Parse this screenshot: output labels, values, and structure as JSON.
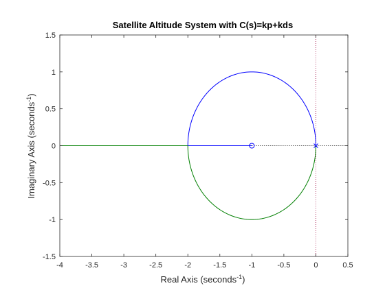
{
  "chart_data": {
    "type": "line",
    "title": "Satellite Altitude System with C(s)=kp+kds",
    "xlabel": "Real Axis (seconds",
    "xlabel_sup": "-1",
    "xlabel_close": ")",
    "ylabel": "Imaginary Axis (seconds",
    "ylabel_sup": "-1",
    "ylabel_close": ")",
    "xlim": [
      -4,
      0.5
    ],
    "ylim": [
      -1.5,
      1.5
    ],
    "x_ticks": [
      -4,
      -3.5,
      -3,
      -2.5,
      -2,
      -1.5,
      -1,
      -0.5,
      0,
      0.5
    ],
    "y_ticks": [
      -1.5,
      -1,
      -0.5,
      0,
      0.5,
      1,
      1.5
    ],
    "x_tick_labels": [
      "-4",
      "-3.5",
      "-3",
      "-2.5",
      "-2",
      "-1.5",
      "-1",
      "-0.5",
      "0",
      "0.5"
    ],
    "y_tick_labels": [
      "-1.5",
      "-1",
      "-0.5",
      "0",
      "0.5",
      "1",
      "1.5"
    ],
    "grid": false,
    "colors": {
      "blue": "#0000ff",
      "green": "#007f00",
      "axis": "#262626"
    },
    "series": [
      {
        "color": "#0000ff",
        "segments": [
          {
            "kind": "arc",
            "center": [
              -1,
              0
            ],
            "radius": 1,
            "from_deg": 0,
            "to_deg": 180
          },
          {
            "kind": "line",
            "x": [
              -2,
              -1
            ],
            "y": [
              0,
              0
            ]
          }
        ]
      },
      {
        "color": "#007f00",
        "segments": [
          {
            "kind": "arc",
            "center": [
              -1,
              0
            ],
            "radius": 1,
            "from_deg": 0,
            "to_deg": -180
          },
          {
            "kind": "line",
            "x": [
              -2,
              -4
            ],
            "y": [
              0,
              0
            ]
          }
        ]
      }
    ],
    "poles": [
      {
        "x": 0,
        "y": 0
      }
    ],
    "zeros": [
      {
        "x": -1,
        "y": 0
      }
    ],
    "reference_lines": [
      {
        "orientation": "vertical",
        "value": 0,
        "style": "dotted"
      },
      {
        "orientation": "horizontal",
        "value": 0,
        "from": -1,
        "to": 0.5,
        "style": "dotted"
      }
    ]
  }
}
